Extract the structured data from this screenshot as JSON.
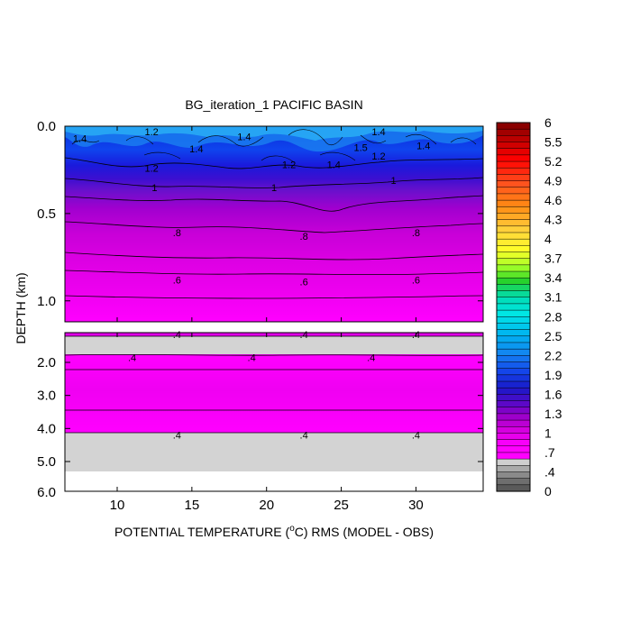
{
  "chart_data": {
    "type": "heatmap",
    "title": "BG_iteration_1 PACIFIC BASIN",
    "xlabel_pre": "POTENTIAL TEMPERATURE (",
    "xlabel_sup": "o",
    "xlabel_post": "C) RMS (MODEL - OBS)",
    "ylabel": "DEPTH (km)",
    "xlim": [
      6.5,
      34.5
    ],
    "x_ticks": [
      10,
      15,
      20,
      25,
      30
    ],
    "x_tick_labels": [
      "10",
      "15",
      "20",
      "25",
      "30"
    ],
    "upper_panel": {
      "ylim": [
        0,
        1.12
      ],
      "y_ticks": [
        0,
        0.5,
        1.0
      ],
      "y_tick_labels": [
        "0.0",
        "0.5",
        "1.0"
      ]
    },
    "lower_panel": {
      "ylim": [
        1.1,
        5.9
      ],
      "y_ticks": [
        2,
        3,
        4,
        5
      ],
      "y_tick_labels": [
        "2.0",
        "3.0",
        "4.0",
        "5.0"
      ]
    },
    "bottom_tick_label": "6.0",
    "colorbar": {
      "labels": [
        "6",
        "5.5",
        "5.2",
        "4.9",
        "4.6",
        "4.3",
        "4",
        "3.7",
        "3.4",
        "3.1",
        "2.8",
        "2.5",
        "2.2",
        "1.9",
        "1.6",
        "1.3",
        "1",
        ".7",
        ".4",
        "0"
      ]
    },
    "contour_labels_upper": [
      {
        "x": 7.5,
        "depth": 0.07,
        "text": "1.4"
      },
      {
        "x": 12.3,
        "depth": 0.03,
        "text": "1.2"
      },
      {
        "x": 18.5,
        "depth": 0.06,
        "text": "1.4"
      },
      {
        "x": 15.3,
        "depth": 0.13,
        "text": "1.4"
      },
      {
        "x": 12.3,
        "depth": 0.24,
        "text": "1.2"
      },
      {
        "x": 21.5,
        "depth": 0.22,
        "text": "1.2"
      },
      {
        "x": 24.5,
        "depth": 0.22,
        "text": "1.4"
      },
      {
        "x": 27.5,
        "depth": 0.03,
        "text": "1.4"
      },
      {
        "x": 26.3,
        "depth": 0.12,
        "text": "1.5"
      },
      {
        "x": 27.5,
        "depth": 0.17,
        "text": "1.2"
      },
      {
        "x": 30.5,
        "depth": 0.11,
        "text": "1.4"
      },
      {
        "x": 12.5,
        "depth": 0.35,
        "text": "1"
      },
      {
        "x": 20.5,
        "depth": 0.35,
        "text": "1"
      },
      {
        "x": 28.5,
        "depth": 0.31,
        "text": "1"
      },
      {
        "x": 14.0,
        "depth": 0.61,
        "text": ".8"
      },
      {
        "x": 22.5,
        "depth": 0.63,
        "text": ".8"
      },
      {
        "x": 30.0,
        "depth": 0.61,
        "text": ".8"
      },
      {
        "x": 14.0,
        "depth": 0.88,
        "text": ".6"
      },
      {
        "x": 22.5,
        "depth": 0.89,
        "text": ".6"
      },
      {
        "x": 30.0,
        "depth": 0.88,
        "text": ".6"
      }
    ],
    "contour_labels_lower": [
      {
        "x": 14.0,
        "depth": 1.15,
        "text": ".4"
      },
      {
        "x": 22.5,
        "depth": 1.15,
        "text": ".4"
      },
      {
        "x": 30.0,
        "depth": 1.15,
        "text": ".4"
      },
      {
        "x": 11.0,
        "depth": 1.85,
        "text": ".4"
      },
      {
        "x": 19.0,
        "depth": 1.85,
        "text": ".4"
      },
      {
        "x": 27.0,
        "depth": 1.85,
        "text": ".4"
      },
      {
        "x": 14.0,
        "depth": 4.2,
        "text": ".4"
      },
      {
        "x": 22.5,
        "depth": 4.2,
        "text": ".4"
      },
      {
        "x": 30.0,
        "depth": 4.2,
        "text": ".4"
      }
    ]
  }
}
